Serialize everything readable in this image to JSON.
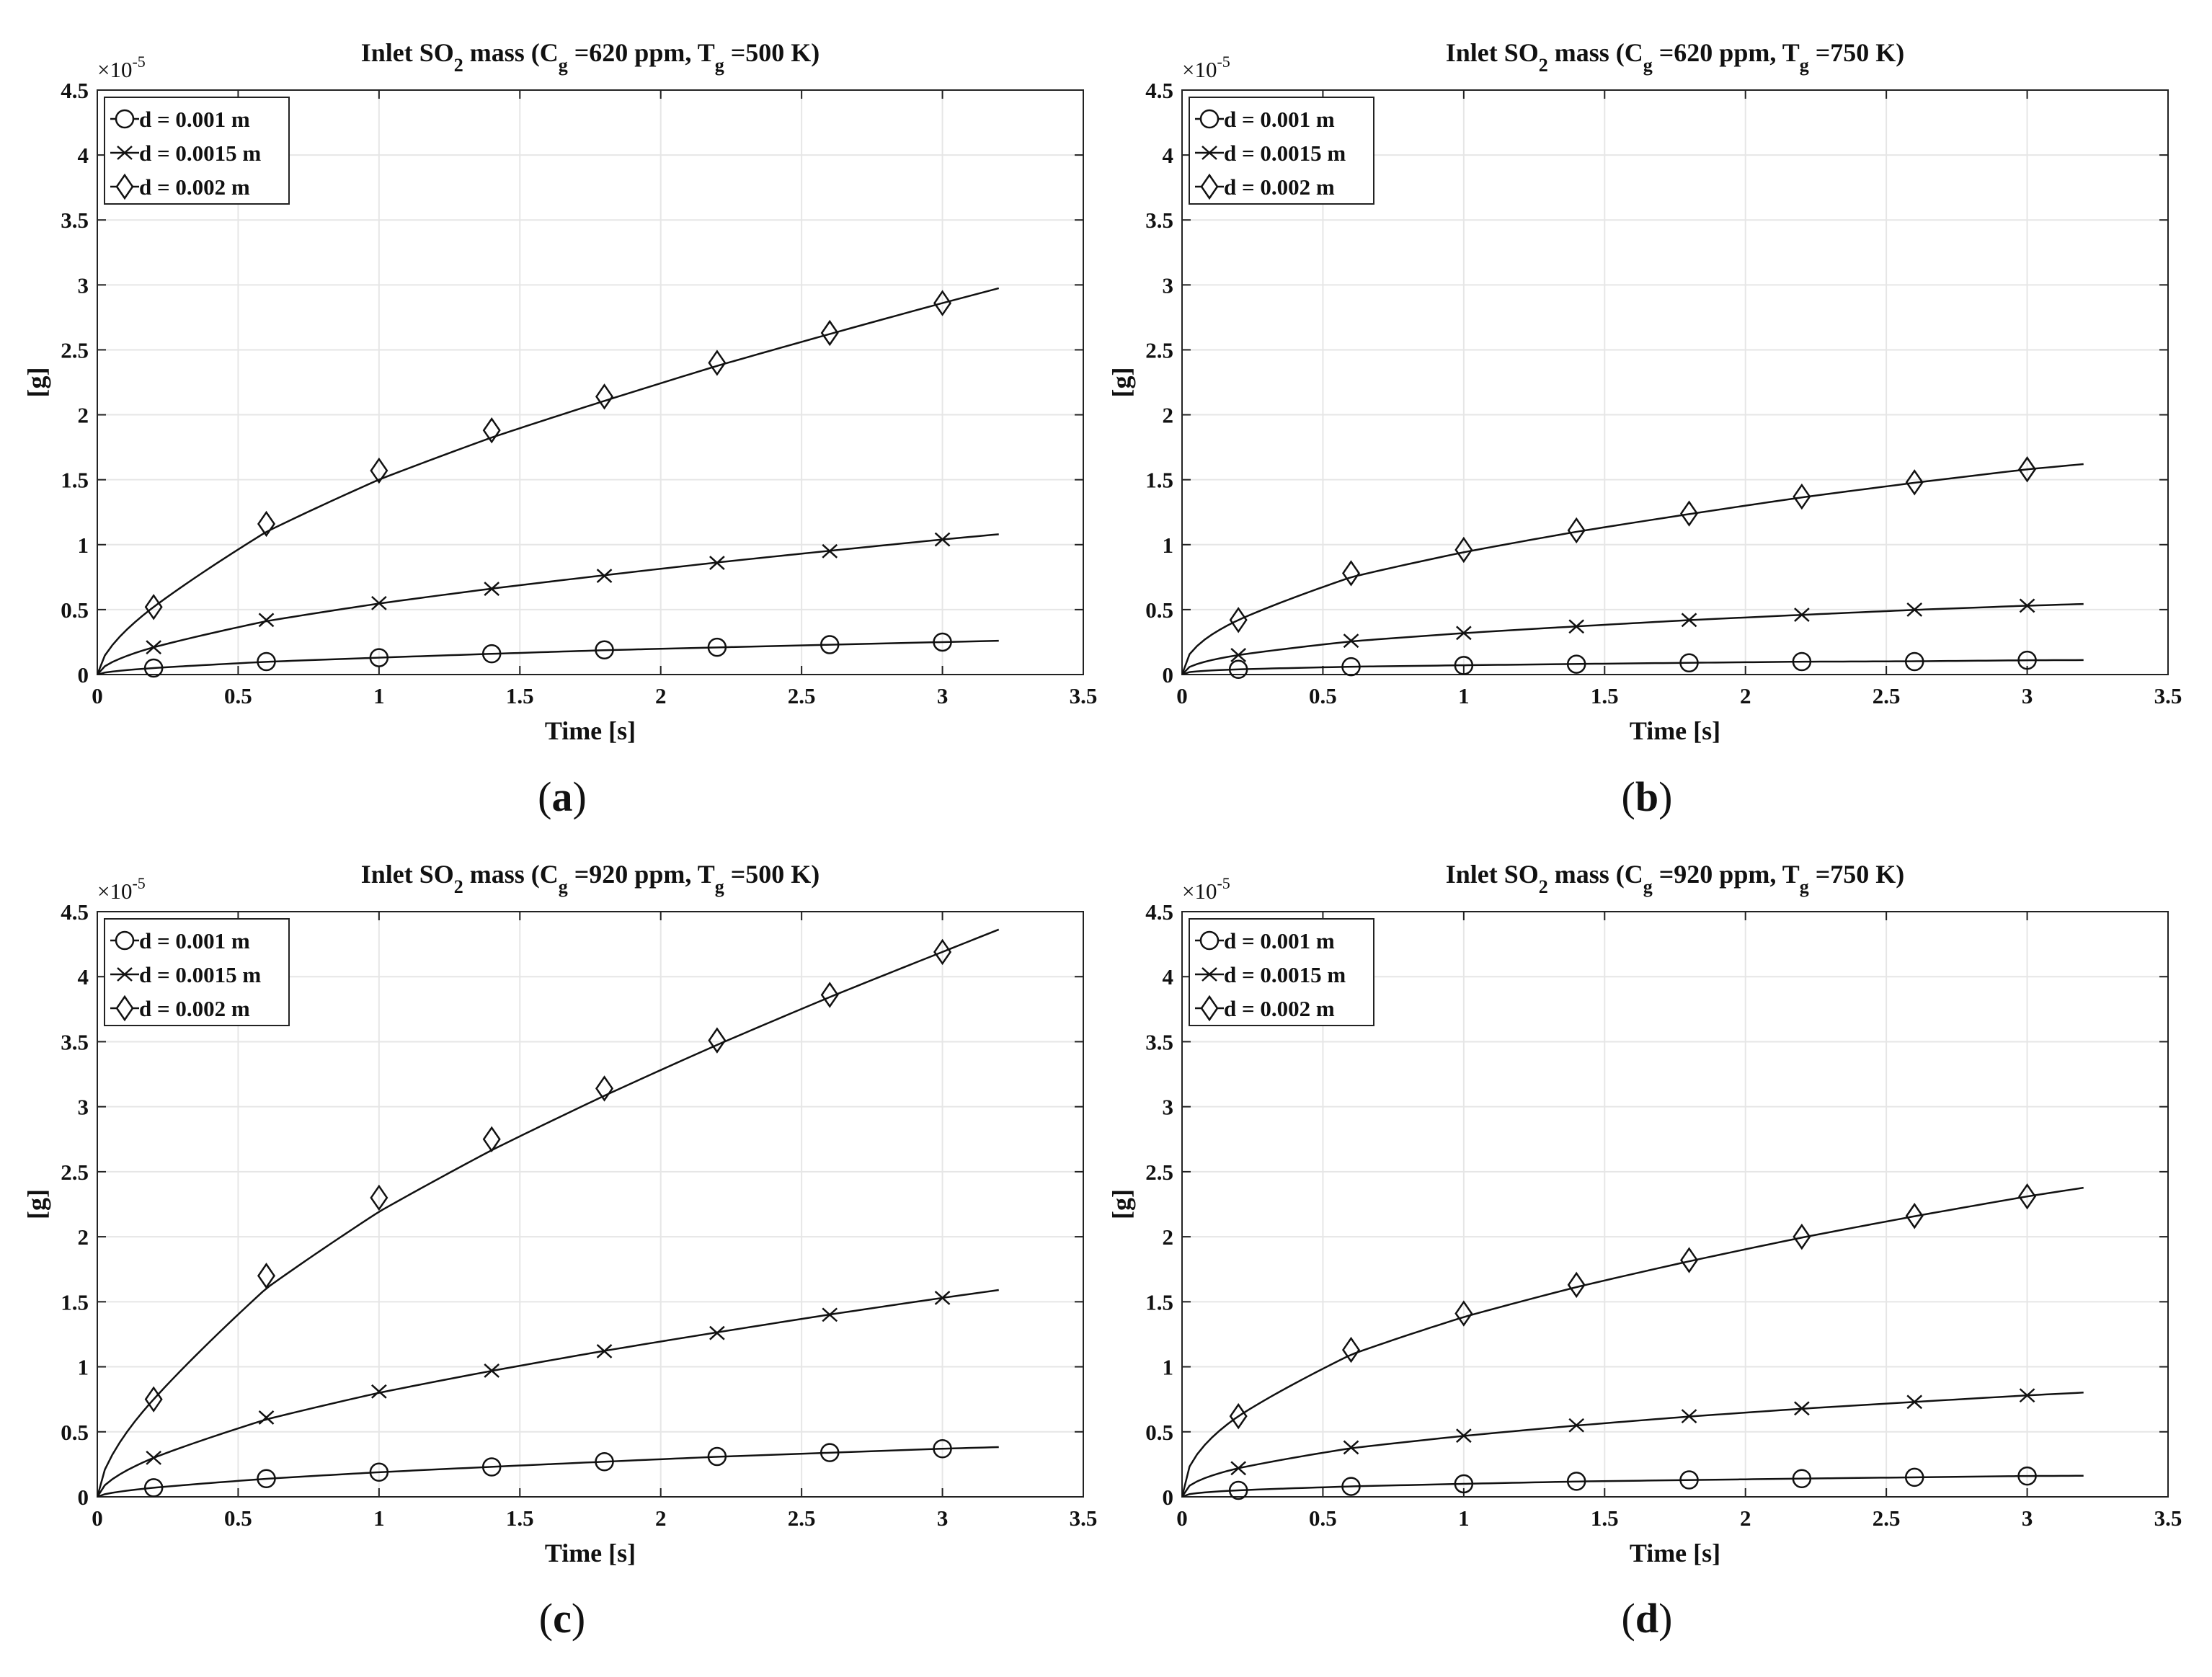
{
  "figure": {
    "panels": [
      {
        "caption_letter": "a",
        "chart_data": {
          "type": "line",
          "title_parts": [
            "Inlet SO",
            "2",
            " mass (C",
            "g",
            " =620 ppm, T",
            "g",
            " =500 K)"
          ],
          "xlabel": "Time [s]",
          "ylabel": "[g]",
          "y_exponent_base": "×10",
          "y_exponent_power": "-5",
          "xlim": [
            0,
            3.5
          ],
          "ylim": [
            0,
            4.5
          ],
          "xticks": [
            "0",
            "0.5",
            "1",
            "1.5",
            "2",
            "2.5",
            "3",
            "3.5"
          ],
          "yticks": [
            "0",
            "0.5",
            "1",
            "1.5",
            "2",
            "2.5",
            "3",
            "3.5",
            "4",
            "4.5"
          ],
          "grid": true,
          "legend_position": "top-left",
          "marker_x": [
            0.2,
            0.6,
            1.0,
            1.4,
            1.8,
            2.2,
            2.6,
            3.0
          ],
          "series": [
            {
              "name": "d = 0.001 m",
              "marker": "circle",
              "end_x": 3.2,
              "end_value": 0.26,
              "values": [
                0.05,
                0.1,
                0.13,
                0.16,
                0.19,
                0.21,
                0.23,
                0.25
              ]
            },
            {
              "name": "d = 0.0015 m",
              "marker": "x",
              "end_x": 3.2,
              "end_value": 1.08,
              "values": [
                0.21,
                0.42,
                0.55,
                0.66,
                0.76,
                0.86,
                0.95,
                1.04
              ]
            },
            {
              "name": "d = 0.002 m",
              "marker": "diamond",
              "end_x": 3.2,
              "end_value": 2.97,
              "values": [
                0.52,
                1.16,
                1.57,
                1.88,
                2.14,
                2.4,
                2.63,
                2.86
              ]
            }
          ]
        }
      },
      {
        "caption_letter": "b",
        "chart_data": {
          "type": "line",
          "title_parts": [
            "Inlet SO",
            "2",
            " mass (C",
            "g",
            " =620 ppm, T",
            "g",
            " =750 K)"
          ],
          "xlabel": "Time [s]",
          "ylabel": "[g]",
          "y_exponent_base": "×10",
          "y_exponent_power": "-5",
          "xlim": [
            0,
            3.5
          ],
          "ylim": [
            0,
            4.5
          ],
          "xticks": [
            "0",
            "0.5",
            "1",
            "1.5",
            "2",
            "2.5",
            "3",
            "3.5"
          ],
          "yticks": [
            "0",
            "0.5",
            "1",
            "1.5",
            "2",
            "2.5",
            "3",
            "3.5",
            "4",
            "4.5"
          ],
          "grid": true,
          "legend_position": "top-left",
          "marker_x": [
            0.2,
            0.6,
            1.0,
            1.4,
            1.8,
            2.2,
            2.6,
            3.0
          ],
          "series": [
            {
              "name": "d = 0.001 m",
              "marker": "circle",
              "end_x": 3.2,
              "end_value": 0.11,
              "values": [
                0.04,
                0.06,
                0.07,
                0.08,
                0.09,
                0.1,
                0.1,
                0.11
              ]
            },
            {
              "name": "d = 0.0015 m",
              "marker": "x",
              "end_x": 3.2,
              "end_value": 0.54,
              "values": [
                0.15,
                0.26,
                0.32,
                0.37,
                0.42,
                0.46,
                0.5,
                0.53
              ]
            },
            {
              "name": "d = 0.002 m",
              "marker": "diamond",
              "end_x": 3.2,
              "end_value": 1.61,
              "values": [
                0.42,
                0.78,
                0.96,
                1.11,
                1.24,
                1.37,
                1.48,
                1.58
              ]
            }
          ]
        }
      },
      {
        "caption_letter": "c",
        "chart_data": {
          "type": "line",
          "title_parts": [
            "Inlet SO",
            "2",
            " mass (C",
            "g",
            " =920 ppm, T",
            "g",
            " =500 K)"
          ],
          "xlabel": "Time [s]",
          "ylabel": "[g]",
          "y_exponent_base": "×10",
          "y_exponent_power": "-5",
          "xlim": [
            0,
            3.5
          ],
          "ylim": [
            0,
            4.5
          ],
          "xticks": [
            "0",
            "0.5",
            "1",
            "1.5",
            "2",
            "2.5",
            "3",
            "3.5"
          ],
          "yticks": [
            "0",
            "0.5",
            "1",
            "1.5",
            "2",
            "2.5",
            "3",
            "3.5",
            "4",
            "4.5"
          ],
          "grid": true,
          "legend_position": "top-left",
          "marker_x": [
            0.2,
            0.6,
            1.0,
            1.4,
            1.8,
            2.2,
            2.6,
            3.0
          ],
          "series": [
            {
              "name": "d = 0.001 m",
              "marker": "circle",
              "end_x": 3.2,
              "end_value": 0.38,
              "values": [
                0.07,
                0.14,
                0.19,
                0.23,
                0.27,
                0.31,
                0.34,
                0.37
              ]
            },
            {
              "name": "d = 0.0015 m",
              "marker": "x",
              "end_x": 3.2,
              "end_value": 1.59,
              "values": [
                0.3,
                0.61,
                0.81,
                0.97,
                1.12,
                1.26,
                1.4,
                1.53
              ]
            },
            {
              "name": "d = 0.002 m",
              "marker": "diamond",
              "end_x": 3.2,
              "end_value": 4.36,
              "values": [
                0.75,
                1.7,
                2.3,
                2.75,
                3.14,
                3.51,
                3.86,
                4.19
              ]
            }
          ]
        }
      },
      {
        "caption_letter": "d",
        "chart_data": {
          "type": "line",
          "title_parts": [
            "Inlet SO",
            "2",
            " mass (C",
            "g",
            " =920 ppm, T",
            "g",
            " =750 K)"
          ],
          "xlabel": "Time [s]",
          "ylabel": "[g]",
          "y_exponent_base": "×10",
          "y_exponent_power": "-5",
          "xlim": [
            0,
            3.5
          ],
          "ylim": [
            0,
            4.5
          ],
          "xticks": [
            "0",
            "0.5",
            "1",
            "1.5",
            "2",
            "2.5",
            "3",
            "3.5"
          ],
          "yticks": [
            "0",
            "0.5",
            "1",
            "1.5",
            "2",
            "2.5",
            "3",
            "3.5",
            "4",
            "4.5"
          ],
          "grid": true,
          "legend_position": "top-left",
          "marker_x": [
            0.2,
            0.6,
            1.0,
            1.4,
            1.8,
            2.2,
            2.6,
            3.0
          ],
          "series": [
            {
              "name": "d = 0.001 m",
              "marker": "circle",
              "end_x": 3.2,
              "end_value": 0.16,
              "values": [
                0.05,
                0.08,
                0.1,
                0.12,
                0.13,
                0.14,
                0.15,
                0.16
              ]
            },
            {
              "name": "d = 0.0015 m",
              "marker": "x",
              "end_x": 3.2,
              "end_value": 0.8,
              "values": [
                0.22,
                0.38,
                0.47,
                0.55,
                0.62,
                0.68,
                0.73,
                0.78
              ]
            },
            {
              "name": "d = 0.002 m",
              "marker": "diamond",
              "end_x": 3.2,
              "end_value": 2.37,
              "values": [
                0.62,
                1.13,
                1.41,
                1.63,
                1.82,
                2.0,
                2.16,
                2.31
              ]
            }
          ]
        }
      }
    ]
  }
}
